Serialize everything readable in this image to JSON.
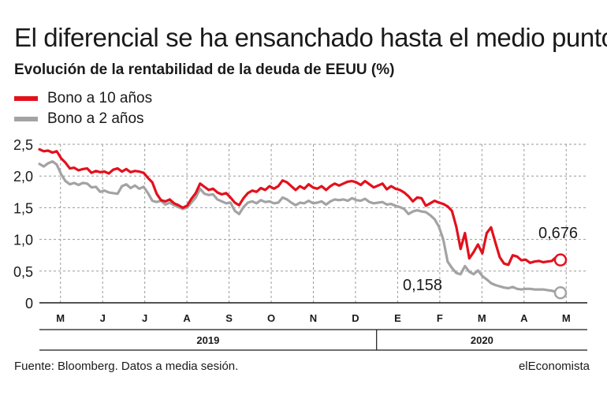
{
  "title": "El diferencial se ha ensanchado hasta el medio punto",
  "subtitle": "Evolución de la rentabilidad de la deuda de EEUU (%)",
  "source": "Fuente: Bloomberg. Datos a media sesión.",
  "brand": "elEconomista",
  "colors": {
    "red": "#e3101c",
    "gray": "#a3a3a3"
  },
  "chart_data": {
    "type": "line",
    "title": "El diferencial se ha ensanchado hasta el medio punto",
    "subtitle": "Evolución de la rentabilidad de la deuda de EEUU (%)",
    "xlabel": "",
    "ylabel": "",
    "ylim": [
      0,
      2.5
    ],
    "yticks": [
      "0",
      "0,5",
      "1,0",
      "1,5",
      "2,0",
      "2,5"
    ],
    "months": [
      "M",
      "J",
      "J",
      "A",
      "S",
      "O",
      "N",
      "D",
      "E",
      "F",
      "M",
      "A",
      "M"
    ],
    "years": [
      "2019",
      "2020"
    ],
    "grid": true,
    "legend_position": "top-left",
    "annotations": {
      "red_last": "0,676",
      "gray_last": "0,158"
    },
    "series": [
      {
        "name": "Bono a 10 años",
        "color": "#e3101c",
        "values": [
          2.42,
          2.39,
          2.4,
          2.37,
          2.39,
          2.28,
          2.21,
          2.12,
          2.13,
          2.09,
          2.11,
          2.12,
          2.05,
          2.08,
          2.06,
          2.07,
          2.04,
          2.1,
          2.12,
          2.07,
          2.11,
          2.06,
          2.08,
          2.07,
          2.05,
          1.97,
          1.9,
          1.72,
          1.62,
          1.6,
          1.63,
          1.57,
          1.54,
          1.5,
          1.53,
          1.64,
          1.73,
          1.88,
          1.83,
          1.78,
          1.8,
          1.74,
          1.71,
          1.73,
          1.66,
          1.58,
          1.54,
          1.65,
          1.73,
          1.77,
          1.75,
          1.81,
          1.78,
          1.84,
          1.8,
          1.84,
          1.93,
          1.9,
          1.84,
          1.78,
          1.84,
          1.8,
          1.87,
          1.82,
          1.8,
          1.84,
          1.78,
          1.84,
          1.88,
          1.85,
          1.88,
          1.91,
          1.92,
          1.9,
          1.86,
          1.92,
          1.87,
          1.82,
          1.85,
          1.88,
          1.79,
          1.84,
          1.8,
          1.78,
          1.74,
          1.68,
          1.6,
          1.66,
          1.65,
          1.53,
          1.57,
          1.61,
          1.58,
          1.56,
          1.52,
          1.45,
          1.2,
          0.85,
          1.1,
          0.7,
          0.8,
          0.92,
          0.78,
          1.1,
          1.19,
          0.95,
          0.72,
          0.62,
          0.6,
          0.75,
          0.73,
          0.67,
          0.68,
          0.63,
          0.65,
          0.66,
          0.64,
          0.65,
          0.66,
          0.72,
          0.676
        ]
      },
      {
        "name": "Bono a 2 años",
        "color": "#a3a3a3",
        "values": [
          2.19,
          2.15,
          2.2,
          2.23,
          2.18,
          2.03,
          1.92,
          1.87,
          1.89,
          1.86,
          1.89,
          1.88,
          1.82,
          1.83,
          1.75,
          1.77,
          1.74,
          1.73,
          1.72,
          1.84,
          1.87,
          1.81,
          1.85,
          1.8,
          1.83,
          1.73,
          1.61,
          1.59,
          1.61,
          1.55,
          1.58,
          1.54,
          1.51,
          1.48,
          1.5,
          1.58,
          1.66,
          1.8,
          1.72,
          1.7,
          1.71,
          1.63,
          1.6,
          1.57,
          1.58,
          1.45,
          1.4,
          1.51,
          1.58,
          1.6,
          1.57,
          1.62,
          1.59,
          1.6,
          1.57,
          1.58,
          1.66,
          1.63,
          1.58,
          1.54,
          1.58,
          1.57,
          1.61,
          1.57,
          1.58,
          1.6,
          1.55,
          1.6,
          1.63,
          1.62,
          1.63,
          1.61,
          1.65,
          1.62,
          1.61,
          1.64,
          1.59,
          1.57,
          1.58,
          1.59,
          1.55,
          1.56,
          1.53,
          1.51,
          1.48,
          1.4,
          1.44,
          1.46,
          1.44,
          1.43,
          1.38,
          1.32,
          1.2,
          1.0,
          0.65,
          0.55,
          0.47,
          0.45,
          0.58,
          0.49,
          0.45,
          0.51,
          0.42,
          0.37,
          0.31,
          0.28,
          0.26,
          0.24,
          0.23,
          0.25,
          0.22,
          0.21,
          0.22,
          0.22,
          0.21,
          0.21,
          0.21,
          0.2,
          0.19,
          0.17,
          0.158
        ]
      }
    ]
  }
}
